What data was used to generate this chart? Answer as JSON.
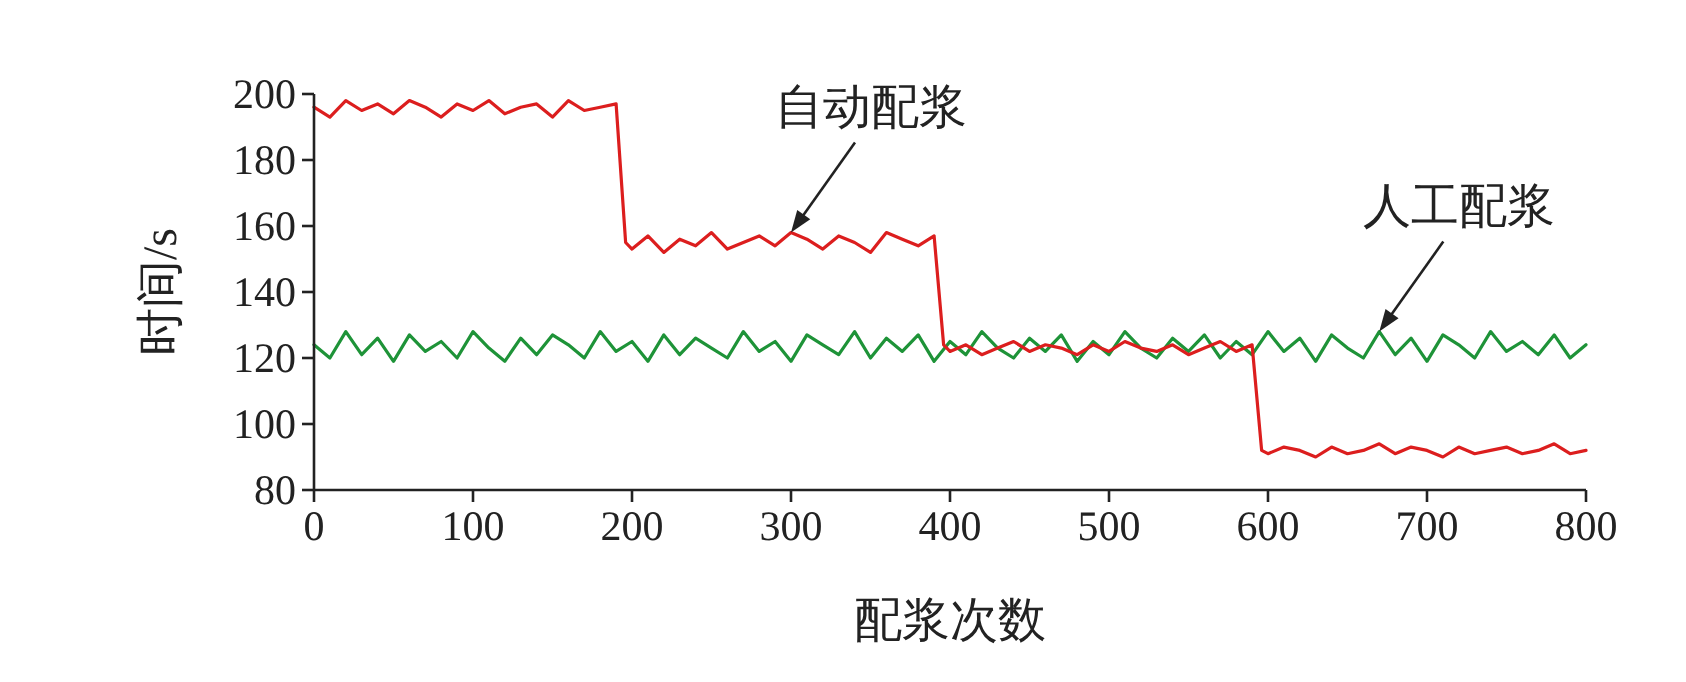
{
  "chart_data": {
    "type": "line",
    "xlabel": "配浆次数",
    "ylabel": "时间/s",
    "xlim": [
      0,
      800
    ],
    "xticks": [
      0,
      100,
      200,
      300,
      400,
      500,
      600,
      700,
      800
    ],
    "ylim": [
      80,
      200
    ],
    "yticks": [
      80,
      100,
      120,
      140,
      160,
      180,
      200
    ],
    "grid": false,
    "series": [
      {
        "color": "#1e9338",
        "x": [
          0,
          10,
          20,
          30,
          40,
          50,
          60,
          70,
          80,
          90,
          100,
          110,
          120,
          130,
          140,
          150,
          160,
          170,
          180,
          190,
          200,
          210,
          220,
          230,
          240,
          250,
          260,
          270,
          280,
          290,
          300,
          310,
          320,
          330,
          340,
          350,
          360,
          370,
          380,
          390,
          400,
          410,
          420,
          430,
          440,
          450,
          460,
          470,
          480,
          490,
          500,
          510,
          520,
          530,
          540,
          550,
          560,
          570,
          580,
          590,
          600,
          610,
          620,
          630,
          640,
          650,
          660,
          670,
          680,
          690,
          700,
          710,
          720,
          730,
          740,
          750,
          760,
          770,
          780,
          790,
          800
        ],
        "values": [
          124,
          120,
          128,
          121,
          126,
          119,
          127,
          122,
          125,
          120,
          128,
          123,
          119,
          126,
          121,
          127,
          124,
          120,
          128,
          122,
          125,
          119,
          127,
          121,
          126,
          123,
          120,
          128,
          122,
          125,
          119,
          127,
          124,
          121,
          128,
          120,
          126,
          122,
          127,
          119,
          125,
          121,
          128,
          123,
          120,
          126,
          122,
          127,
          119,
          125,
          121,
          128,
          123,
          120,
          126,
          122,
          127,
          120,
          125,
          121,
          128,
          122,
          126,
          119,
          127,
          123,
          120,
          128,
          121,
          126,
          119,
          127,
          124,
          120,
          128,
          122,
          125,
          121,
          127,
          120,
          124
        ]
      },
      {
        "color": "#dc1e1e",
        "x": [
          0,
          10,
          20,
          30,
          40,
          50,
          60,
          70,
          80,
          90,
          100,
          110,
          120,
          130,
          140,
          150,
          160,
          170,
          180,
          190,
          196,
          200,
          210,
          220,
          230,
          240,
          250,
          260,
          270,
          280,
          290,
          300,
          310,
          320,
          330,
          340,
          350,
          360,
          370,
          380,
          390,
          396,
          400,
          410,
          420,
          430,
          440,
          450,
          460,
          470,
          480,
          490,
          500,
          510,
          520,
          530,
          540,
          550,
          560,
          570,
          580,
          590,
          596,
          600,
          610,
          620,
          630,
          640,
          650,
          660,
          670,
          680,
          690,
          700,
          710,
          720,
          730,
          740,
          750,
          760,
          770,
          780,
          790,
          800
        ],
        "values": [
          196,
          193,
          198,
          195,
          197,
          194,
          198,
          196,
          193,
          197,
          195,
          198,
          194,
          196,
          197,
          193,
          198,
          195,
          196,
          197,
          155,
          153,
          157,
          152,
          156,
          154,
          158,
          153,
          155,
          157,
          154,
          158,
          156,
          153,
          157,
          155,
          152,
          158,
          156,
          154,
          157,
          124,
          122,
          124,
          121,
          123,
          125,
          122,
          124,
          123,
          121,
          124,
          122,
          125,
          123,
          122,
          124,
          121,
          123,
          125,
          122,
          124,
          92,
          91,
          93,
          92,
          90,
          93,
          91,
          92,
          94,
          91,
          93,
          92,
          90,
          93,
          91,
          92,
          93,
          91,
          92,
          94,
          91,
          92
        ]
      }
    ],
    "annotations": [
      {
        "text": "自动配浆",
        "x": 300,
        "y": 158
      },
      {
        "text": "人工配浆",
        "x": 670,
        "y": 128
      }
    ]
  }
}
